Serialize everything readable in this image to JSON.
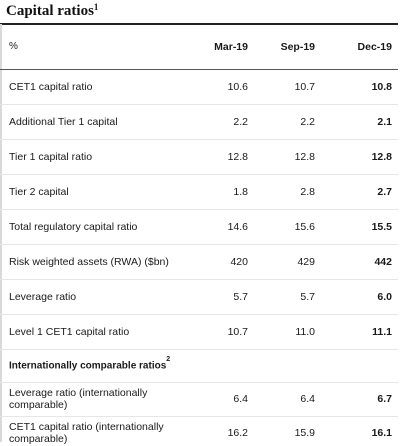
{
  "title": {
    "text": "Capital ratios",
    "footnote": "1"
  },
  "table": {
    "unit": "%",
    "columns": [
      "Mar-19",
      "Sep-19",
      "Dec-19"
    ],
    "rows": [
      {
        "label": "CET1 capital ratio",
        "values": [
          "10.6",
          "10.7",
          "10.8"
        ]
      },
      {
        "label": "Additional Tier 1 capital",
        "values": [
          "2.2",
          "2.2",
          "2.1"
        ]
      },
      {
        "label": "Tier 1 capital ratio",
        "values": [
          "12.8",
          "12.8",
          "12.8"
        ]
      },
      {
        "label": "Tier 2 capital",
        "values": [
          "1.8",
          "2.8",
          "2.7"
        ]
      },
      {
        "label": "Total regulatory capital ratio",
        "values": [
          "14.6",
          "15.6",
          "15.5"
        ]
      },
      {
        "label": "Risk weighted assets (RWA) ($bn)",
        "values": [
          "420",
          "429",
          "442"
        ]
      },
      {
        "label": "Leverage ratio",
        "values": [
          "5.7",
          "5.7",
          "6.0"
        ]
      },
      {
        "label": "Level 1 CET1 capital ratio",
        "values": [
          "10.7",
          "11.0",
          "11.1"
        ]
      }
    ],
    "section": {
      "label": "Internationally comparable ratios",
      "footnote": "2"
    },
    "section_rows": [
      {
        "label": "Leverage ratio (internationally comparable)",
        "values": [
          "6.4",
          "6.4",
          "6.7"
        ]
      },
      {
        "label": "CET1 capital ratio (internationally comparable)",
        "values": [
          "16.2",
          "15.9",
          "16.1"
        ]
      }
    ]
  },
  "colors": {
    "accent_rule": "#cc2b2b",
    "text": "#1a1a1a"
  }
}
